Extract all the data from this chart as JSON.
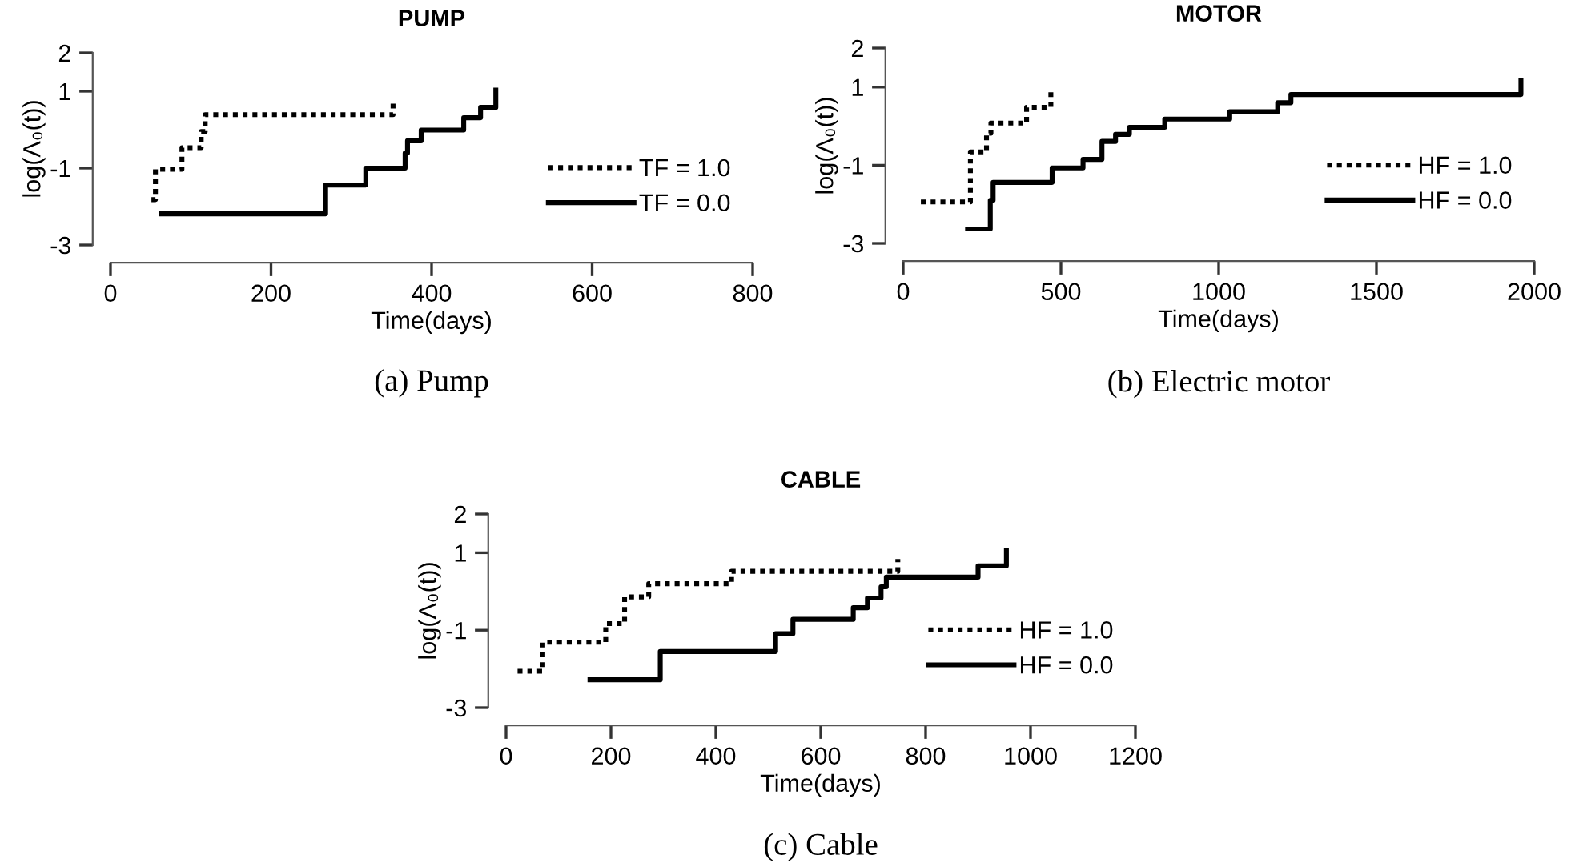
{
  "chart_data": [
    {
      "type": "step",
      "title": "PUMP",
      "xlabel": "Time(days)",
      "ylabel": "log(Λ₀(t))",
      "annotations": [
        "(a) Pump"
      ],
      "xlim": [
        0,
        800
      ],
      "xticks": [
        0,
        200,
        400,
        600,
        800
      ],
      "ylim": [
        -3,
        2
      ],
      "yticks": [
        -3,
        -1,
        1,
        2
      ],
      "grid": false,
      "legend": "right",
      "series": [
        {
          "name": "TF = 1.0",
          "color": "#000000",
          "line_style": "dotted",
          "x": [
            51,
            56,
            89,
            113,
            118,
            352
          ],
          "values": [
            -1.82,
            -1.03,
            -0.47,
            -0.05,
            0.39,
            0.68
          ]
        },
        {
          "name": "TF = 0.0",
          "color": "#000000",
          "line_style": "solid",
          "x": [
            63,
            268,
            318,
            367,
            370,
            387,
            440,
            461,
            480
          ],
          "values": [
            -2.19,
            -1.44,
            -1.0,
            -0.61,
            -0.29,
            -0.01,
            0.31,
            0.58,
            1.03
          ]
        }
      ]
    },
    {
      "type": "step",
      "title": "MOTOR",
      "xlabel": "Time(days)",
      "ylabel": "log(Λ₀(t))",
      "annotations": [
        "(b) Electric motor"
      ],
      "xlim": [
        0,
        2000
      ],
      "xticks": [
        0,
        500,
        1000,
        1500,
        2000
      ],
      "ylim": [
        -3,
        2
      ],
      "yticks": [
        -3,
        -1,
        1,
        2
      ],
      "grid": false,
      "legend": "right",
      "series": [
        {
          "name": "HF = 1.0",
          "color": "#000000",
          "line_style": "dotted",
          "x": [
            56,
            213,
            264,
            278,
            391,
            468
          ],
          "values": [
            -1.94,
            -0.66,
            -0.18,
            0.08,
            0.48,
            0.97
          ]
        },
        {
          "name": "HF = 0.0",
          "color": "#000000",
          "line_style": "solid",
          "x": [
            204,
            276,
            285,
            472,
            570,
            630,
            673,
            717,
            829,
            1035,
            1187,
            1229,
            1958
          ],
          "values": [
            -2.63,
            -1.9,
            -1.44,
            -1.07,
            -0.85,
            -0.39,
            -0.21,
            -0.03,
            0.18,
            0.37,
            0.6,
            0.81,
            1.18
          ]
        }
      ]
    },
    {
      "type": "step",
      "title": "CABLE",
      "xlabel": "Time(days)",
      "ylabel": "log(Λ₀(t))",
      "annotations": [
        "(c) Cable"
      ],
      "xlim": [
        0,
        1200
      ],
      "xticks": [
        0,
        200,
        400,
        600,
        800,
        1000,
        1200
      ],
      "ylim": [
        -3,
        2
      ],
      "yticks": [
        -3,
        -1,
        1,
        2
      ],
      "grid": false,
      "legend": "right",
      "series": [
        {
          "name": "HF = 1.0",
          "color": "#000000",
          "line_style": "dotted",
          "x": [
            22,
            70,
            190,
            226,
            272,
            430,
            747
          ],
          "values": [
            -2.06,
            -1.31,
            -0.83,
            -0.14,
            0.2,
            0.52,
            0.84
          ]
        },
        {
          "name": "HF = 0.0",
          "color": "#000000",
          "line_style": "solid",
          "x": [
            160,
            294,
            514,
            547,
            662,
            689,
            715,
            725,
            900,
            954
          ],
          "values": [
            -2.28,
            -1.55,
            -1.09,
            -0.72,
            -0.42,
            -0.17,
            0.12,
            0.37,
            0.66,
            1.07
          ]
        }
      ]
    }
  ]
}
